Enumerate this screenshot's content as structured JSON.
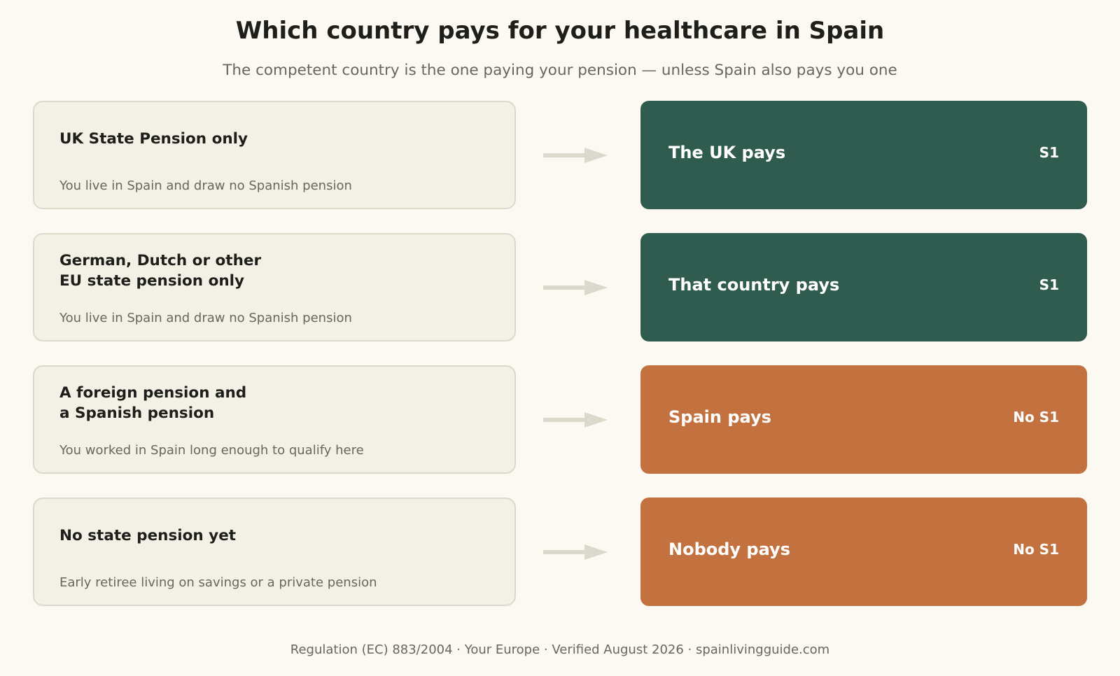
{
  "header": {
    "title": "Which country pays for your healthcare in Spain",
    "subtitle": "The competent country is the one paying your pension — unless Spain also pays you one"
  },
  "rows": [
    {
      "condition_title": "UK State Pension only",
      "condition_desc": "You live in Spain and draw no Spanish pension",
      "result_label": "The UK pays",
      "result_badge": "S1",
      "result_color": "#2f5c4f"
    },
    {
      "condition_title": "German, Dutch or other\nEU state pension only",
      "condition_desc": "You live in Spain and draw no Spanish pension",
      "result_label": "That country pays",
      "result_badge": "S1",
      "result_color": "#2f5c4f"
    },
    {
      "condition_title": "A foreign pension and\na Spanish pension",
      "condition_desc": "You worked in Spain long enough to qualify here",
      "result_label": "Spain pays",
      "result_badge": "No S1",
      "result_color": "#c3713f"
    },
    {
      "condition_title": "No state pension yet",
      "condition_desc": "Early retiree living on savings or a private pension",
      "result_label": "Nobody pays",
      "result_badge": "No S1",
      "result_color": "#c3713f"
    }
  ],
  "footer": {
    "text": "Regulation (EC) 883/2004 · Your Europe · Verified August 2026 · spainlivingguide.com"
  },
  "colors": {
    "background": "#fbf9f2",
    "card_fill": "#f3f0e6",
    "card_border": "#dcd8cb",
    "arrow": "#dcd8cb",
    "green": "#2f5c4f",
    "orange": "#c3713f"
  }
}
